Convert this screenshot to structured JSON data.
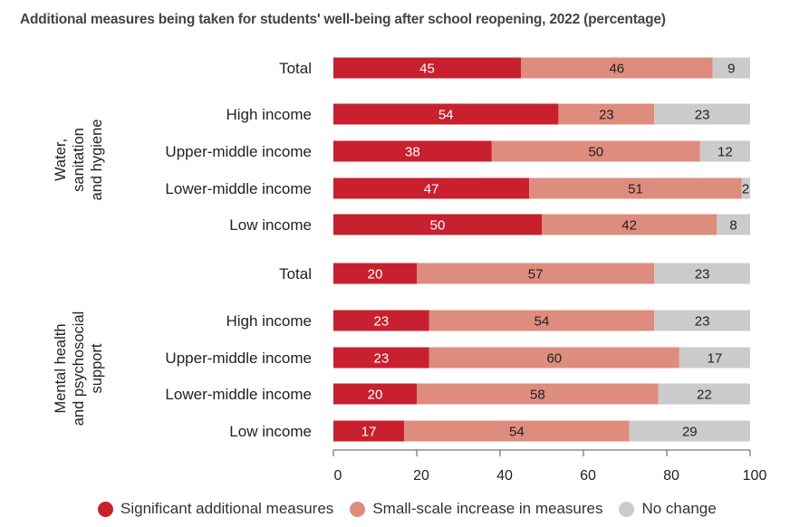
{
  "title": "Additional measures being taken for students' well-being after school reopening, 2022 (percentage)",
  "colors": {
    "significant": "#c8202f",
    "small_scale": "#de8c7e",
    "no_change": "#cbcbcb"
  },
  "legend": [
    {
      "label": "Significant additional measures",
      "color": "#c8202f"
    },
    {
      "label": "Small-scale increase in measures",
      "color": "#de8c7e"
    },
    {
      "label": "No change",
      "color": "#cbcbcb"
    }
  ],
  "chart_data": {
    "type": "bar",
    "orientation": "horizontal",
    "stacked": true,
    "xlim": [
      0,
      100
    ],
    "xticks": [
      0,
      20,
      40,
      60,
      80,
      100
    ],
    "series_names": [
      "Significant additional measures",
      "Small-scale increase in measures",
      "No change"
    ],
    "groups": [
      {
        "label_lines": [
          "Water,",
          "sanitation",
          "and hygiene"
        ],
        "rows": [
          {
            "label": "Total",
            "values": [
              45,
              46,
              9
            ]
          },
          {
            "label": "High income",
            "values": [
              54,
              23,
              23
            ]
          },
          {
            "label": "Upper-middle income",
            "values": [
              38,
              50,
              12
            ]
          },
          {
            "label": "Lower-middle income",
            "values": [
              47,
              51,
              2
            ]
          },
          {
            "label": "Low income",
            "values": [
              50,
              42,
              8
            ]
          }
        ]
      },
      {
        "label_lines": [
          "Mental health",
          "and psychosocial",
          "support"
        ],
        "rows": [
          {
            "label": "Total",
            "values": [
              20,
              57,
              23
            ]
          },
          {
            "label": "High income",
            "values": [
              23,
              54,
              23
            ]
          },
          {
            "label": "Upper-middle income",
            "values": [
              23,
              60,
              17
            ]
          },
          {
            "label": "Lower-middle income",
            "values": [
              20,
              58,
              22
            ]
          },
          {
            "label": "Low income",
            "values": [
              17,
              54,
              29
            ]
          }
        ]
      }
    ]
  }
}
